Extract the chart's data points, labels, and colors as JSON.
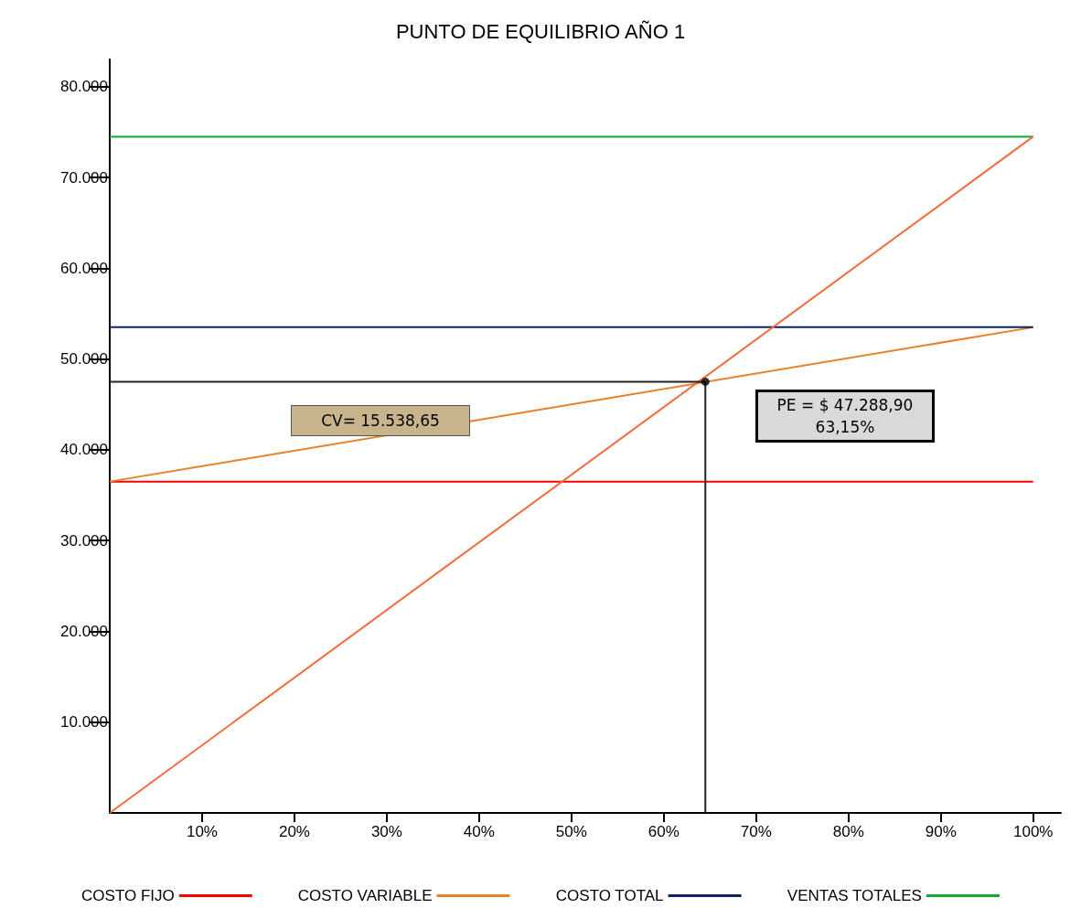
{
  "chart_data": {
    "type": "line",
    "title": "PUNTO DE EQUILIBRIO AÑO 1",
    "series": [
      {
        "name": "COSTO FIJO",
        "color": "#ff0000",
        "x": [
          0,
          100
        ],
        "values": [
          36500,
          36500
        ]
      },
      {
        "name": "COSTO VARIABLE",
        "color": "#e8812a",
        "x": [
          0,
          100
        ],
        "values": [
          36500,
          53500
        ]
      },
      {
        "name": "COSTO TOTAL",
        "color": "#0c2366",
        "x": [
          0,
          100
        ],
        "values": [
          53500,
          53500
        ]
      },
      {
        "name": "VENTAS TOTALES",
        "color": "#12a834",
        "x": [
          0,
          100
        ],
        "values": [
          74500,
          74500
        ]
      },
      {
        "color": "#f26b3a",
        "x": [
          0,
          100
        ],
        "values": [
          0,
          74500
        ]
      },
      {
        "color": "#222222",
        "x": [
          0,
          64.5
        ],
        "values": [
          47500,
          47500
        ]
      },
      {
        "color": "#222222",
        "x": [
          64.5,
          64.5
        ],
        "values": [
          0,
          47500
        ]
      },
      {
        "type": "scatter",
        "marker": "circle",
        "color": "#000000",
        "x": [
          64.5
        ],
        "values": [
          47500
        ]
      }
    ],
    "annotations": [
      "CV= 15.538,65",
      "PE =  $ 47.288,90\n63,15%"
    ],
    "xlim": [
      0,
      103
    ],
    "xticks": [
      {
        "value": 10,
        "label": "10%"
      },
      {
        "value": 20,
        "label": "20%"
      },
      {
        "value": 30,
        "label": "30%"
      },
      {
        "value": 40,
        "label": "40%"
      },
      {
        "value": 50,
        "label": "50%"
      },
      {
        "value": 60,
        "label": "60%"
      },
      {
        "value": 70,
        "label": "70%"
      },
      {
        "value": 80,
        "label": "80%"
      },
      {
        "value": 90,
        "label": "90%"
      },
      {
        "value": 100,
        "label": "100%"
      }
    ],
    "ylim": [
      0,
      83000
    ],
    "yticks": [
      {
        "value": 10000,
        "label": "10.000"
      },
      {
        "value": 20000,
        "label": "20.000"
      },
      {
        "value": 30000,
        "label": "30.000"
      },
      {
        "value": 40000,
        "label": "40.000"
      },
      {
        "value": 50000,
        "label": "50.000"
      },
      {
        "value": 60000,
        "label": "60.000"
      },
      {
        "value": 70000,
        "label": "70.000"
      },
      {
        "value": 80000,
        "label": "80.000"
      }
    ],
    "grid": false,
    "legend": "bottom",
    "marker": "none",
    "line_style": "solid"
  }
}
